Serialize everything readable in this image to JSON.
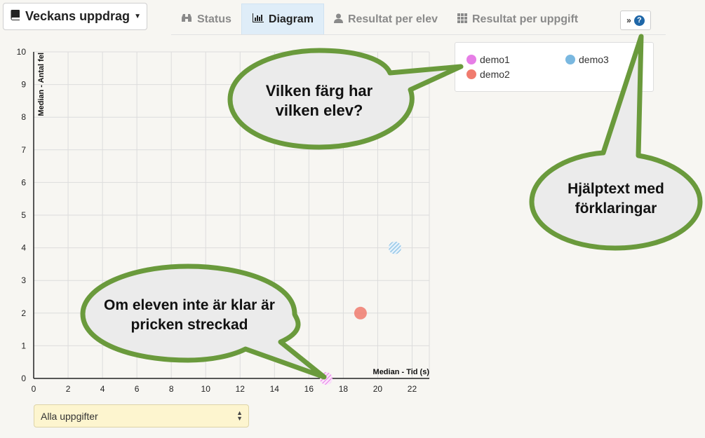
{
  "header": {
    "assignment_dropdown": "Veckans uppdrag",
    "tabs": [
      {
        "label": "Status",
        "icon": "binoculars-icon"
      },
      {
        "label": "Diagram",
        "icon": "bar-chart-icon"
      },
      {
        "label": "Resultat per elev",
        "icon": "user-icon"
      },
      {
        "label": "Resultat per uppgift",
        "icon": "grid-icon"
      }
    ],
    "active_tab": "Diagram",
    "help_symbol": "?"
  },
  "chart_data": {
    "type": "scatter",
    "xlabel": "Median - Tid (s)",
    "ylabel": "Median - Antal fel",
    "xlim": [
      0,
      23
    ],
    "ylim": [
      0,
      10
    ],
    "xticks": [
      0,
      2,
      4,
      6,
      8,
      10,
      12,
      14,
      16,
      18,
      20,
      22
    ],
    "yticks": [
      0,
      1,
      2,
      3,
      4,
      5,
      6,
      7,
      8,
      9,
      10
    ],
    "grid": true,
    "series": [
      {
        "name": "demo1",
        "color": "#e67ee6",
        "x": 17,
        "y": 0,
        "dashed": true
      },
      {
        "name": "demo2",
        "color": "#f07b6e",
        "x": 19,
        "y": 2,
        "dashed": false
      },
      {
        "name": "demo3",
        "color": "#7ab8e0",
        "x": 21,
        "y": 4,
        "dashed": true
      }
    ]
  },
  "filter": {
    "selected": "Alla uppgifter"
  },
  "callouts": {
    "legend": "Vilken färg har vilken elev?",
    "help": "Hjälptext med förklaringar",
    "dashed": "Om eleven inte är klar är pricken streckad"
  }
}
